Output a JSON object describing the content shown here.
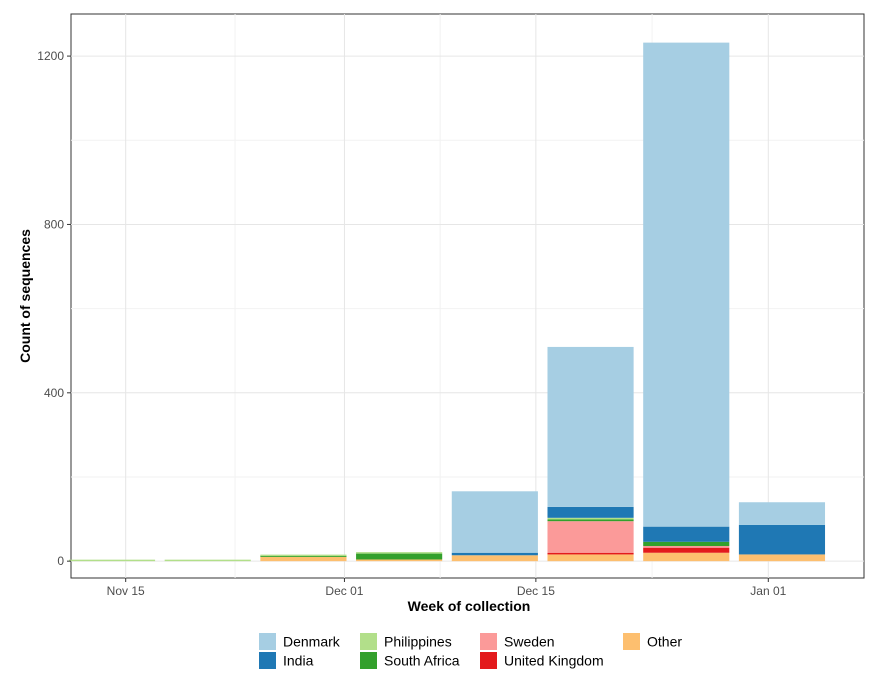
{
  "chart_data": {
    "type": "bar",
    "stacked": true,
    "title": "",
    "xlabel": "Week of collection",
    "ylabel": "Count of sequences",
    "x_axis_type": "date",
    "xlim": [
      "2021-11-11",
      "2022-01-08"
    ],
    "ylim": [
      -40,
      1300
    ],
    "x_ticks": [
      {
        "date": "2021-11-15",
        "label": "Nov 15"
      },
      {
        "date": "2021-12-01",
        "label": "Dec 01"
      },
      {
        "date": "2021-12-15",
        "label": "Dec 15"
      },
      {
        "date": "2022-01-01",
        "label": "Jan 01"
      }
    ],
    "y_ticks": [
      0,
      400,
      800,
      1200
    ],
    "grid": true,
    "legend_position": "bottom",
    "categories": [
      "2021-11-14",
      "2021-11-21",
      "2021-11-28",
      "2021-12-05",
      "2021-12-12",
      "2021-12-19",
      "2021-12-26",
      "2022-01-02"
    ],
    "series": [
      {
        "name": "Other",
        "color": "#FDBF6F",
        "values": [
          0,
          0,
          10,
          4,
          14,
          16,
          20,
          16
        ]
      },
      {
        "name": "United Kingdom",
        "color": "#E31A1C",
        "values": [
          0,
          0,
          0,
          0,
          0,
          4,
          12,
          0
        ]
      },
      {
        "name": "Sweden",
        "color": "#FB9A99",
        "values": [
          0,
          0,
          0,
          0,
          0,
          75,
          4,
          0
        ]
      },
      {
        "name": "South Africa",
        "color": "#33A02C",
        "values": [
          0,
          0,
          2,
          14,
          0,
          4,
          10,
          0
        ]
      },
      {
        "name": "Philippines",
        "color": "#B2DF8A",
        "values": [
          2,
          2,
          2,
          2,
          0,
          4,
          0,
          0
        ]
      },
      {
        "name": "India",
        "color": "#1F78B4",
        "values": [
          0,
          0,
          0,
          0,
          6,
          26,
          36,
          70
        ]
      },
      {
        "name": "Denmark",
        "color": "#A6CEE3",
        "values": [
          0,
          0,
          0,
          0,
          146,
          380,
          1150,
          54
        ]
      }
    ],
    "legend_order": [
      "Denmark",
      "India",
      "Philippines",
      "South Africa",
      "Sweden",
      "United Kingdom",
      "Other"
    ]
  }
}
